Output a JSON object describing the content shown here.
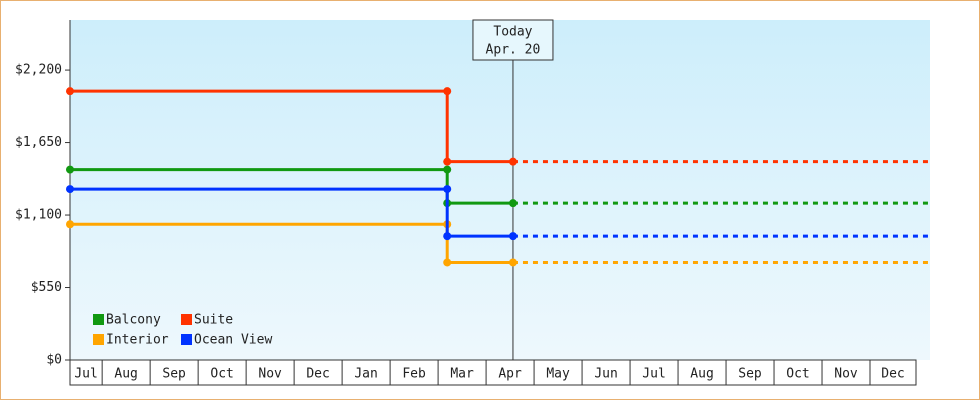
{
  "chart_data": {
    "type": "step-line",
    "categories": [
      "Jul",
      "Aug",
      "Sep",
      "Oct",
      "Nov",
      "Dec",
      "Jan",
      "Feb",
      "Mar",
      "Apr",
      "May",
      "Jun",
      "Jul",
      "Aug",
      "Sep",
      "Oct",
      "Nov",
      "Dec"
    ],
    "xlim": [
      0.33,
      18.25
    ],
    "x": [
      0.33,
      8.19,
      8.19,
      9.56
    ],
    "series": [
      {
        "name": "Balcony",
        "color": "#119911",
        "values": [
          1445,
          1445,
          1190,
          1190
        ]
      },
      {
        "name": "Suite",
        "color": "#ff3300",
        "values": [
          2040,
          2040,
          1505,
          1505
        ]
      },
      {
        "name": "Interior",
        "color": "#ffa500",
        "values": [
          1030,
          1030,
          740,
          740
        ]
      },
      {
        "name": "Ocean View",
        "color": "#0033ff",
        "values": [
          1297,
          1297,
          940,
          940
        ]
      }
    ],
    "ylim": [
      0,
      2580
    ],
    "yticks": [
      {
        "value": 0,
        "label": "$0"
      },
      {
        "value": 550,
        "label": "$550"
      },
      {
        "value": 1100,
        "label": "$1,100"
      },
      {
        "value": 1650,
        "label": "$1,650"
      },
      {
        "value": 2200,
        "label": "$2,200"
      }
    ],
    "today": {
      "x": 9.56,
      "label": [
        "Today",
        "Apr. 20"
      ]
    },
    "legend": "lower-left"
  }
}
